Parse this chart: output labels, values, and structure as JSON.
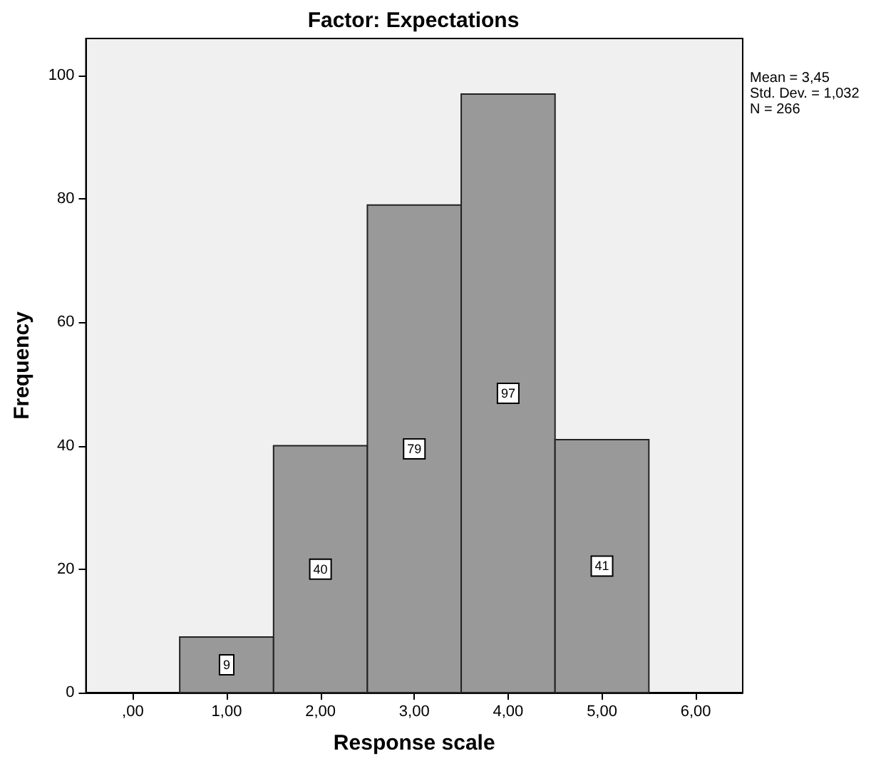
{
  "chart_data": {
    "type": "histogram",
    "title": "Factor: Expectations",
    "xlabel": "Response scale",
    "ylabel": "Frequency",
    "bins": [
      0.5,
      1.5,
      2.5,
      3.5,
      4.5,
      5.5
    ],
    "values": [
      9,
      40,
      79,
      97,
      41
    ],
    "color": "#999999",
    "data_labels": true,
    "xlim": [
      -0.5,
      6.5
    ],
    "xticks": [
      {
        "value": 0,
        "label": ",00"
      },
      {
        "value": 1,
        "label": "1,00"
      },
      {
        "value": 2,
        "label": "2,00"
      },
      {
        "value": 3,
        "label": "3,00"
      },
      {
        "value": 4,
        "label": "4,00"
      },
      {
        "value": 5,
        "label": "5,00"
      },
      {
        "value": 6,
        "label": "6,00"
      }
    ],
    "ylim": [
      0,
      106
    ],
    "yticks": [
      0,
      20,
      40,
      60,
      80,
      100
    ],
    "grid": false,
    "annotations": [
      "Mean = 3,45",
      "Std. Dev. = 1,032",
      "N = 266"
    ]
  }
}
